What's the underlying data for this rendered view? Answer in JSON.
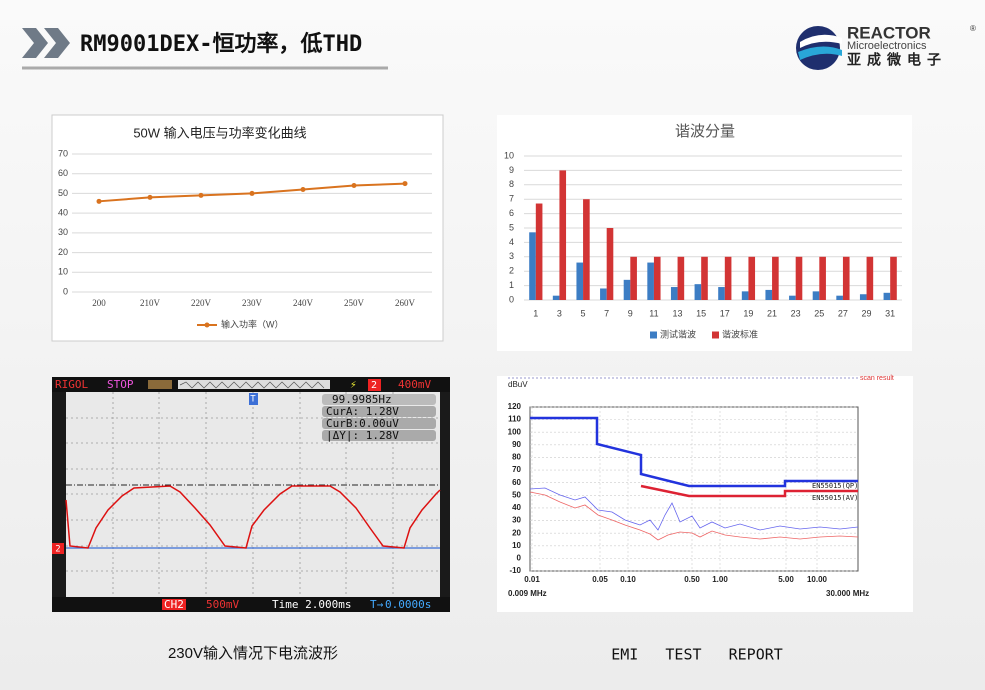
{
  "header": {
    "title": "RM9001DEX-恒功率，低THD",
    "logo": {
      "brand": "REACTOR",
      "reg": "®",
      "sub": "Microelectronics",
      "cn": "亚成微电子"
    }
  },
  "chart_data": [
    {
      "type": "line",
      "title": "50W 输入电压与功率变化曲线",
      "categories": [
        "200",
        "210V",
        "220V",
        "230V",
        "240V",
        "250V",
        "260V"
      ],
      "series": [
        {
          "name": "输入功率（W）",
          "color": "#d9731f",
          "values": [
            46,
            48,
            49,
            50,
            52,
            54,
            55
          ]
        }
      ],
      "ylim": [
        0,
        70
      ],
      "yticks": [
        0,
        10,
        20,
        30,
        40,
        50,
        60,
        70
      ],
      "grid": true,
      "legend": "bottom"
    },
    {
      "type": "bar",
      "title": "谐波分量",
      "categories": [
        "1",
        "3",
        "5",
        "7",
        "9",
        "11",
        "13",
        "15",
        "17",
        "19",
        "21",
        "23",
        "25",
        "27",
        "29",
        "31"
      ],
      "series": [
        {
          "name": "测试谐波",
          "color": "#3c7dc4",
          "values": [
            4.7,
            0.3,
            2.6,
            0.8,
            1.4,
            2.6,
            0.9,
            1.1,
            0.9,
            0.6,
            0.7,
            0.3,
            0.6,
            0.3,
            0.4,
            0.5
          ]
        },
        {
          "name": "谐波标准",
          "color": "#d23434",
          "values": [
            6.7,
            9,
            7,
            5,
            3,
            3,
            3,
            3,
            3,
            3,
            3,
            3,
            3,
            3,
            3,
            3
          ]
        }
      ],
      "ylim": [
        0,
        10
      ],
      "yticks": [
        0,
        1,
        2,
        3,
        4,
        5,
        6,
        7,
        8,
        9,
        10
      ],
      "grid": true,
      "legend": "bottom"
    }
  ],
  "scope": {
    "brand": "RIGOL",
    "state": "STOP",
    "trig_ch": "2",
    "trig_level": "400mV",
    "freq": "99.9985Hz",
    "cur_a": "CurA: 1.28V",
    "cur_b": "CurB:0.00uV",
    "delta": "|ΔY|: 1.28V",
    "ch": "CH2",
    "ch_scale": "500mV",
    "time": "Time 2.000ms",
    "offset": "0.0000s",
    "marker": "T",
    "ch_marker": "2"
  },
  "emi": {
    "unit": "dBuV",
    "note": "scan result",
    "yticks": [
      "120",
      "110",
      "100",
      "90",
      "80",
      "70",
      "60",
      "50",
      "40",
      "30",
      "20",
      "10",
      "0",
      "-10"
    ],
    "xticks": [
      "0.01",
      "0.05",
      "0.10",
      "0.50",
      "1.00",
      "5.00",
      "10.00"
    ],
    "x_start": "0.009 MHz",
    "x_end": "30.000 MHz",
    "limits": [
      "EN55015(QP)",
      "EN55015(AV)"
    ]
  },
  "captions": [
    "230V输入情况下电流波形",
    "EMI   TEST   REPORT"
  ]
}
